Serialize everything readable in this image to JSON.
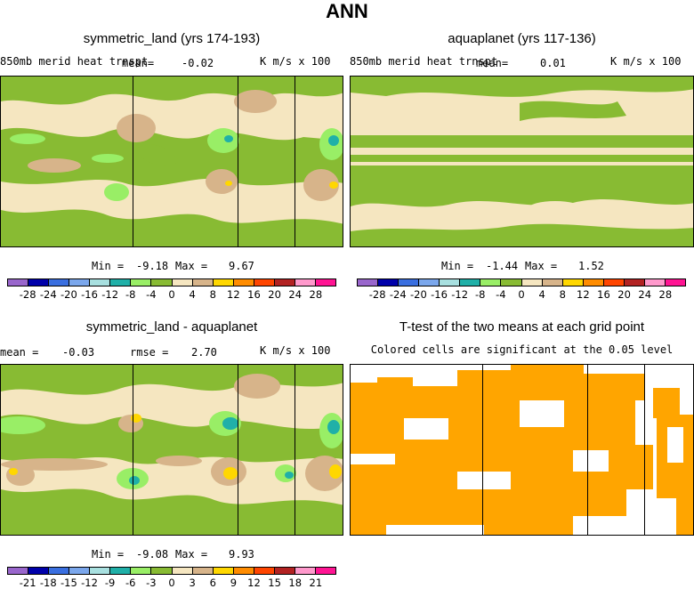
{
  "title": "ANN",
  "colors": {
    "scale": [
      "#9966cc",
      "#0000aa",
      "#3a6fe0",
      "#7ba7ec",
      "#a8e0e0",
      "#20b0a8",
      "#99ee66",
      "#88bb33",
      "#f5e6c0",
      "#d7b48a",
      "#ffd700",
      "#ff8c00",
      "#ff4500",
      "#b22222",
      "#ff99cc",
      "#ff1493"
    ],
    "green": "#88bb33",
    "light_green": "#99ee66",
    "tan": "#d7b48a",
    "cream": "#f5e6c0",
    "teal": "#20b0a8",
    "yellow": "#ffd700",
    "sig_orange": "#ffa500"
  },
  "panels": {
    "p1": {
      "title": "symmetric_land (yrs 174-193)",
      "varname": "850mb merid heat trnspt",
      "mean_label": "mean=",
      "mean_value": "-0.02",
      "units": "K m/s x 100",
      "min_label": "Min =",
      "min_value": "-9.18",
      "max_label": "Max =",
      "max_value": "9.67"
    },
    "p2": {
      "title": "aquaplanet (yrs 117-136)",
      "varname": "850mb merid heat trnspt",
      "mean_label": "mean=",
      "mean_value": "0.01",
      "units": "K m/s x 100",
      "min_label": "Min =",
      "min_value": "-1.44",
      "max_label": "Max =",
      "max_value": "1.52"
    },
    "p3": {
      "title": "symmetric_land - aquaplanet",
      "mean_label": "mean =",
      "mean_value": "-0.03",
      "rmse_label": "rmse =",
      "rmse_value": "2.70",
      "units": "K m/s x 100",
      "min_label": "Min =",
      "min_value": "-9.08",
      "max_label": "Max =",
      "max_value": "9.93"
    },
    "p4": {
      "title": "T-test of the two means at each grid point",
      "subtitle": "Colored cells are significant at the 0.05 level"
    }
  },
  "colorbars": {
    "top_ticks": [
      "-28",
      "-24",
      "-20",
      "-16",
      "-12",
      "-8",
      "-4",
      "0",
      "4",
      "8",
      "12",
      "16",
      "20",
      "24",
      "28"
    ],
    "diff_ticks": [
      "-21",
      "-18",
      "-15",
      "-12",
      "-9",
      "-6",
      "-3",
      "0",
      "3",
      "6",
      "9",
      "12",
      "15",
      "18",
      "21"
    ]
  },
  "chart_data": [
    {
      "type": "heatmap",
      "title": "symmetric_land (yrs 174-193)",
      "variable": "850mb merid heat trnspt",
      "units": "K m/s x 100",
      "mean": -0.02,
      "min": -9.18,
      "max": 9.67,
      "contour_levels": [
        -28,
        -24,
        -20,
        -16,
        -12,
        -8,
        -4,
        0,
        4,
        8,
        12,
        16,
        20,
        24,
        28
      ]
    },
    {
      "type": "heatmap",
      "title": "aquaplanet (yrs 117-136)",
      "variable": "850mb merid heat trnspt",
      "units": "K m/s x 100",
      "mean": 0.01,
      "min": -1.44,
      "max": 1.52,
      "contour_levels": [
        -28,
        -24,
        -20,
        -16,
        -12,
        -8,
        -4,
        0,
        4,
        8,
        12,
        16,
        20,
        24,
        28
      ]
    },
    {
      "type": "heatmap",
      "title": "symmetric_land - aquaplanet",
      "units": "K m/s x 100",
      "mean": -0.03,
      "rmse": 2.7,
      "min": -9.08,
      "max": 9.93,
      "contour_levels": [
        -21,
        -18,
        -15,
        -12,
        -9,
        -6,
        -3,
        0,
        3,
        6,
        9,
        12,
        15,
        18,
        21
      ]
    },
    {
      "type": "heatmap",
      "title": "T-test of the two means at each grid point",
      "subtitle": "Colored cells are significant at the 0.05 level"
    }
  ]
}
